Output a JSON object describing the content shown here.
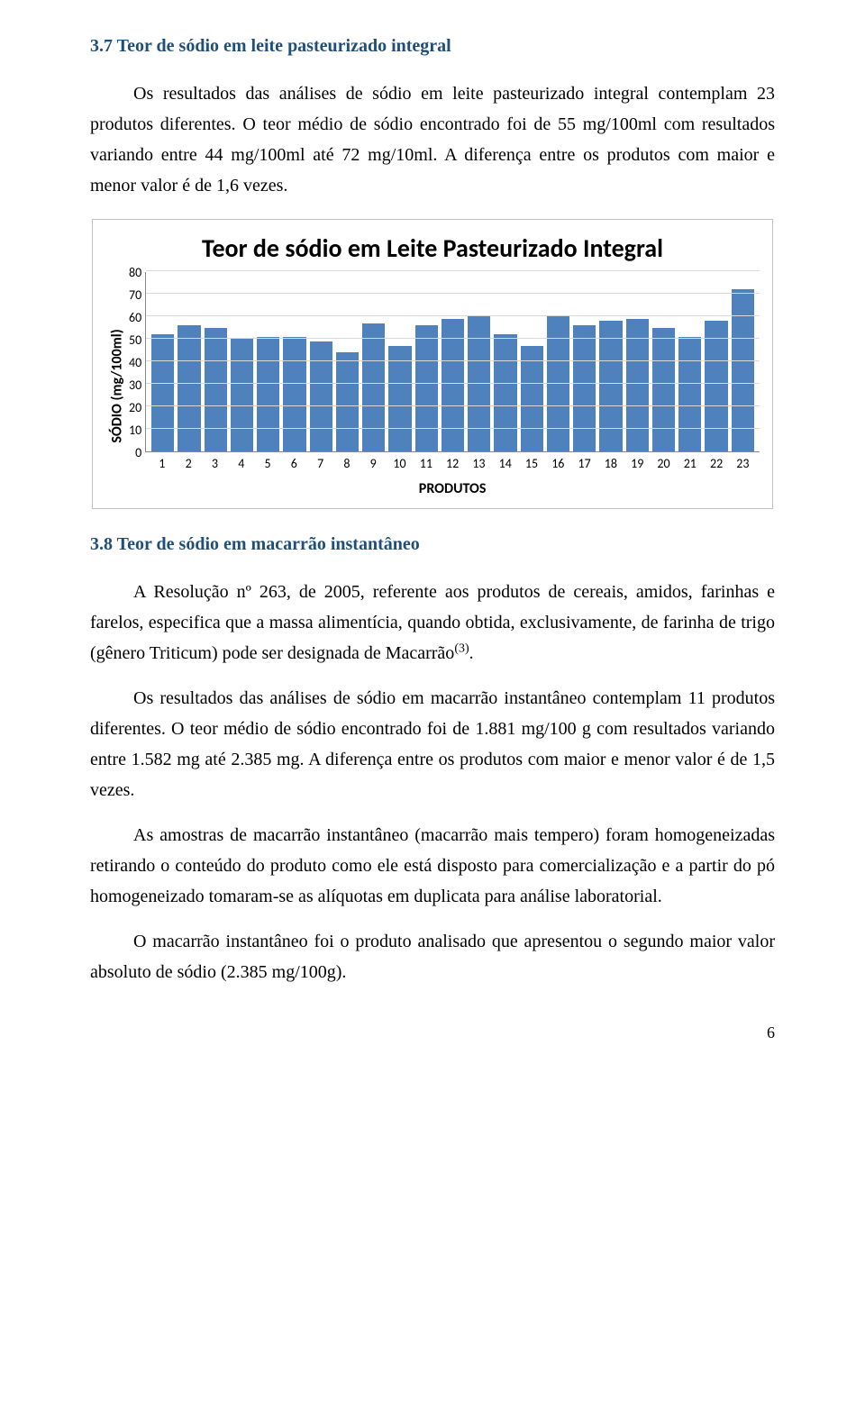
{
  "section37": {
    "heading": "3.7 Teor de sódio em leite pasteurizado integral",
    "p1": "Os resultados das análises de sódio em leite pasteurizado integral contemplam 23 produtos diferentes. O teor médio de sódio encontrado foi de 55 mg/100ml com resultados variando entre 44 mg/100ml até 72 mg/10ml.  A diferença entre os produtos com maior e menor valor é de 1,6 vezes."
  },
  "chart": {
    "type": "bar",
    "title": "Teor de sódio em Leite Pasteurizado Integral",
    "ylabel": "SÓDIO (mg/100ml)",
    "xlabel": "PRODUTOS",
    "ylim": [
      0,
      80
    ],
    "ytick_step": 10,
    "yticks": [
      "80",
      "70",
      "60",
      "50",
      "40",
      "30",
      "20",
      "10",
      "0"
    ],
    "categories": [
      "1",
      "2",
      "3",
      "4",
      "5",
      "6",
      "7",
      "8",
      "9",
      "10",
      "11",
      "12",
      "13",
      "14",
      "15",
      "16",
      "17",
      "18",
      "19",
      "20",
      "21",
      "22",
      "23"
    ],
    "values": [
      52,
      56,
      55,
      50,
      51,
      51,
      49,
      44,
      57,
      47,
      56,
      59,
      60,
      52,
      47,
      60,
      56,
      58,
      59,
      55,
      51,
      58,
      72
    ],
    "bar_color": "#4f81bd",
    "grid_color": "#d9d9d9",
    "axis_color": "#888888",
    "border_color": "#bfbfbf",
    "background_color": "#ffffff",
    "title_fontsize": 28,
    "label_fontsize": 16,
    "tick_fontsize": 14
  },
  "section38": {
    "heading": "3.8 Teor de sódio em macarrão instantâneo",
    "p1a": "A Resolução nº 263, de 2005, referente aos produtos de cereais, amidos, farinhas e farelos, especifica que a massa alimentícia, quando obtida, exclusivamente, de farinha de trigo (gênero Triticum) pode ser designada de Macarrão",
    "p1_sup": "(3)",
    "p1b": ".",
    "p2": "Os resultados das análises de sódio em macarrão instantâneo contemplam 11 produtos diferentes. O teor médio de sódio encontrado foi de 1.881 mg/100 g com resultados variando entre 1.582 mg até 2.385 mg.  A diferença entre os produtos com maior e menor valor é de 1,5 vezes.",
    "p3": "As amostras de macarrão instantâneo (macarrão mais tempero) foram homogeneizadas retirando o conteúdo do produto como ele está disposto para comercialização e a partir do pó homogeneizado tomaram-se as alíquotas em duplicata para análise laboratorial.",
    "p4": "O macarrão instantâneo foi o produto analisado que apresentou o segundo maior valor absoluto de sódio (2.385 mg/100g)."
  },
  "page_number": "6"
}
